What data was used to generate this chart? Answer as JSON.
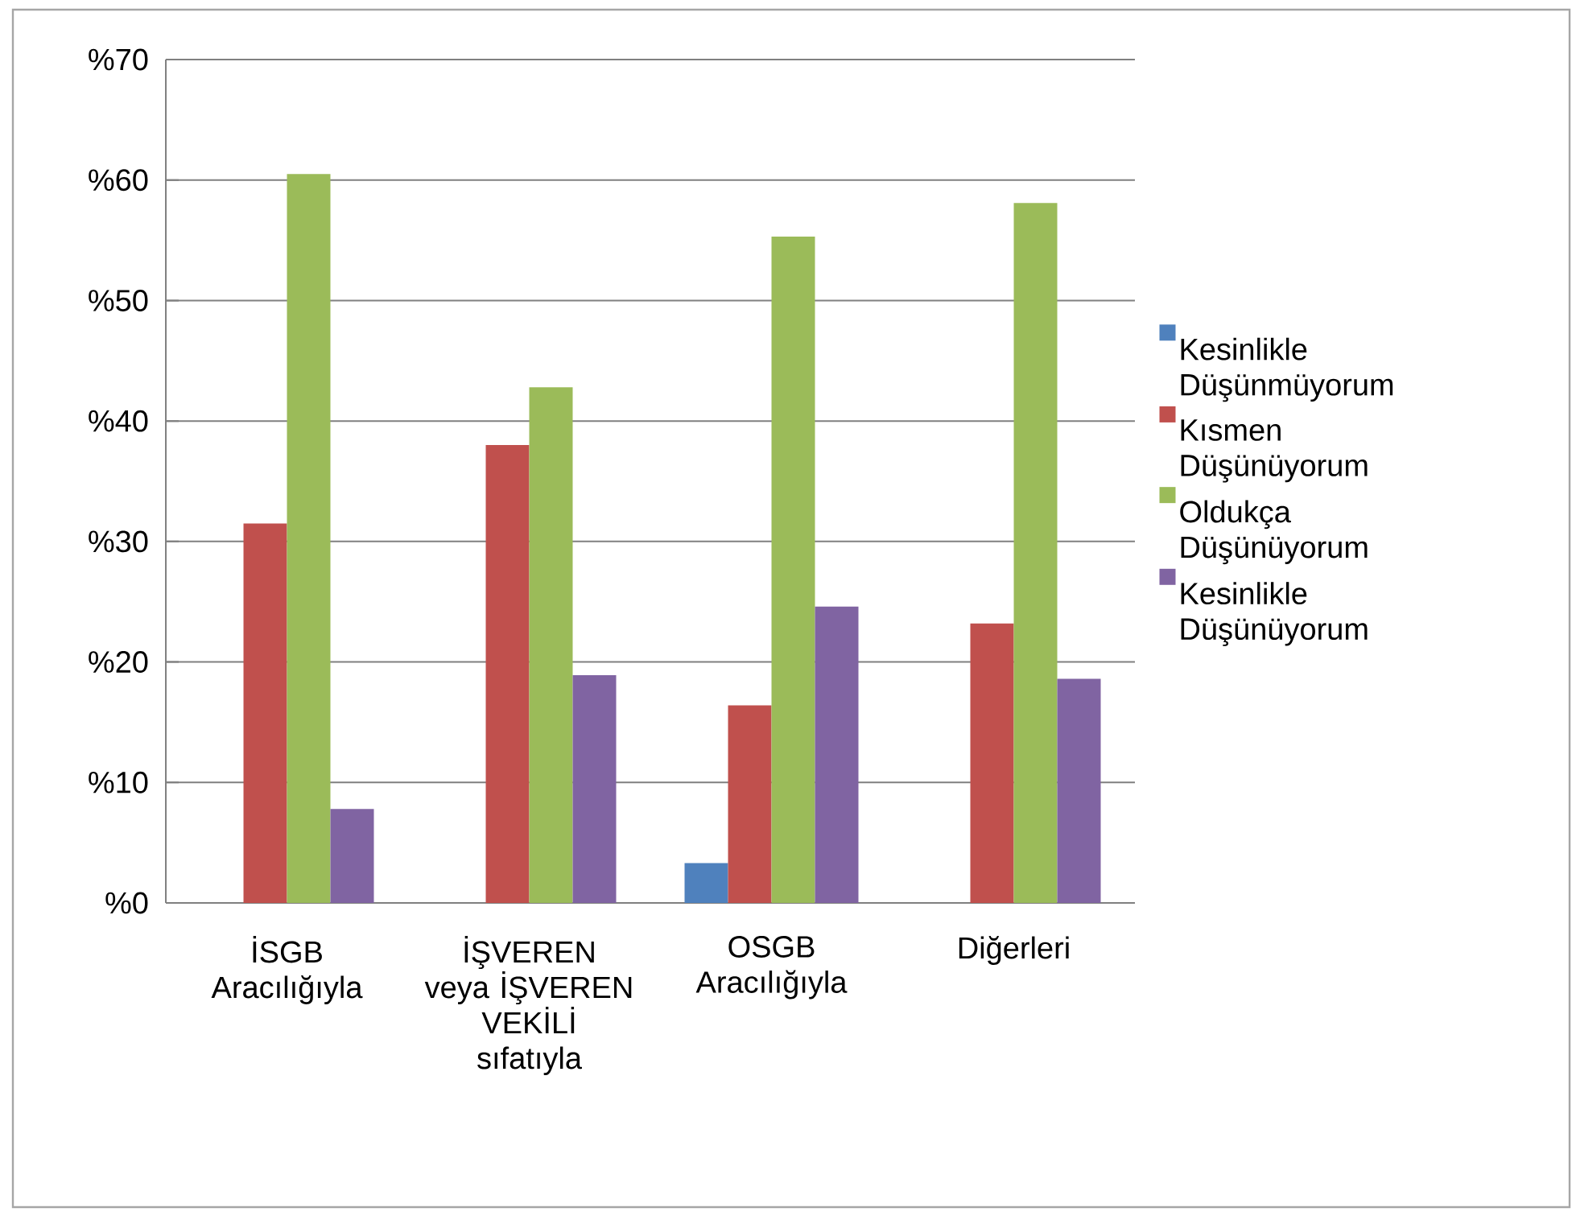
{
  "chart_data": {
    "type": "bar",
    "categories": [
      "İSGB Aracılığıyla",
      "İŞVEREN veya İŞVEREN VEKİLİ sıfatıyla",
      "OSGB Aracılığıyla",
      "Diğerleri"
    ],
    "series": [
      {
        "name": "Kesinlikle Düşünmüyorum",
        "color": "#4f81bd",
        "values": [
          null,
          null,
          3.3,
          null
        ]
      },
      {
        "name": "Kısmen Düşünüyorum",
        "color": "#c0504d",
        "values": [
          31.5,
          38.0,
          16.4,
          23.2
        ]
      },
      {
        "name": "Oldukça Düşünüyorum",
        "color": "#9bbb59",
        "values": [
          60.5,
          42.8,
          55.3,
          58.1
        ]
      },
      {
        "name": "Kesinlikle Düşünüyorum",
        "color": "#8064a2",
        "values": [
          7.8,
          18.9,
          24.6,
          18.6
        ]
      }
    ],
    "ylim": [
      0,
      70
    ],
    "yticks": [
      {
        "value": 0,
        "label": "%0"
      },
      {
        "value": 10,
        "label": "%10"
      },
      {
        "value": 20,
        "label": "%20"
      },
      {
        "value": 30,
        "label": "%30"
      },
      {
        "value": 40,
        "label": "%40"
      },
      {
        "value": 50,
        "label": "%50"
      },
      {
        "value": 60,
        "label": "%60"
      },
      {
        "value": 70,
        "label": "%70"
      }
    ],
    "grid": "y",
    "legend": "right"
  }
}
